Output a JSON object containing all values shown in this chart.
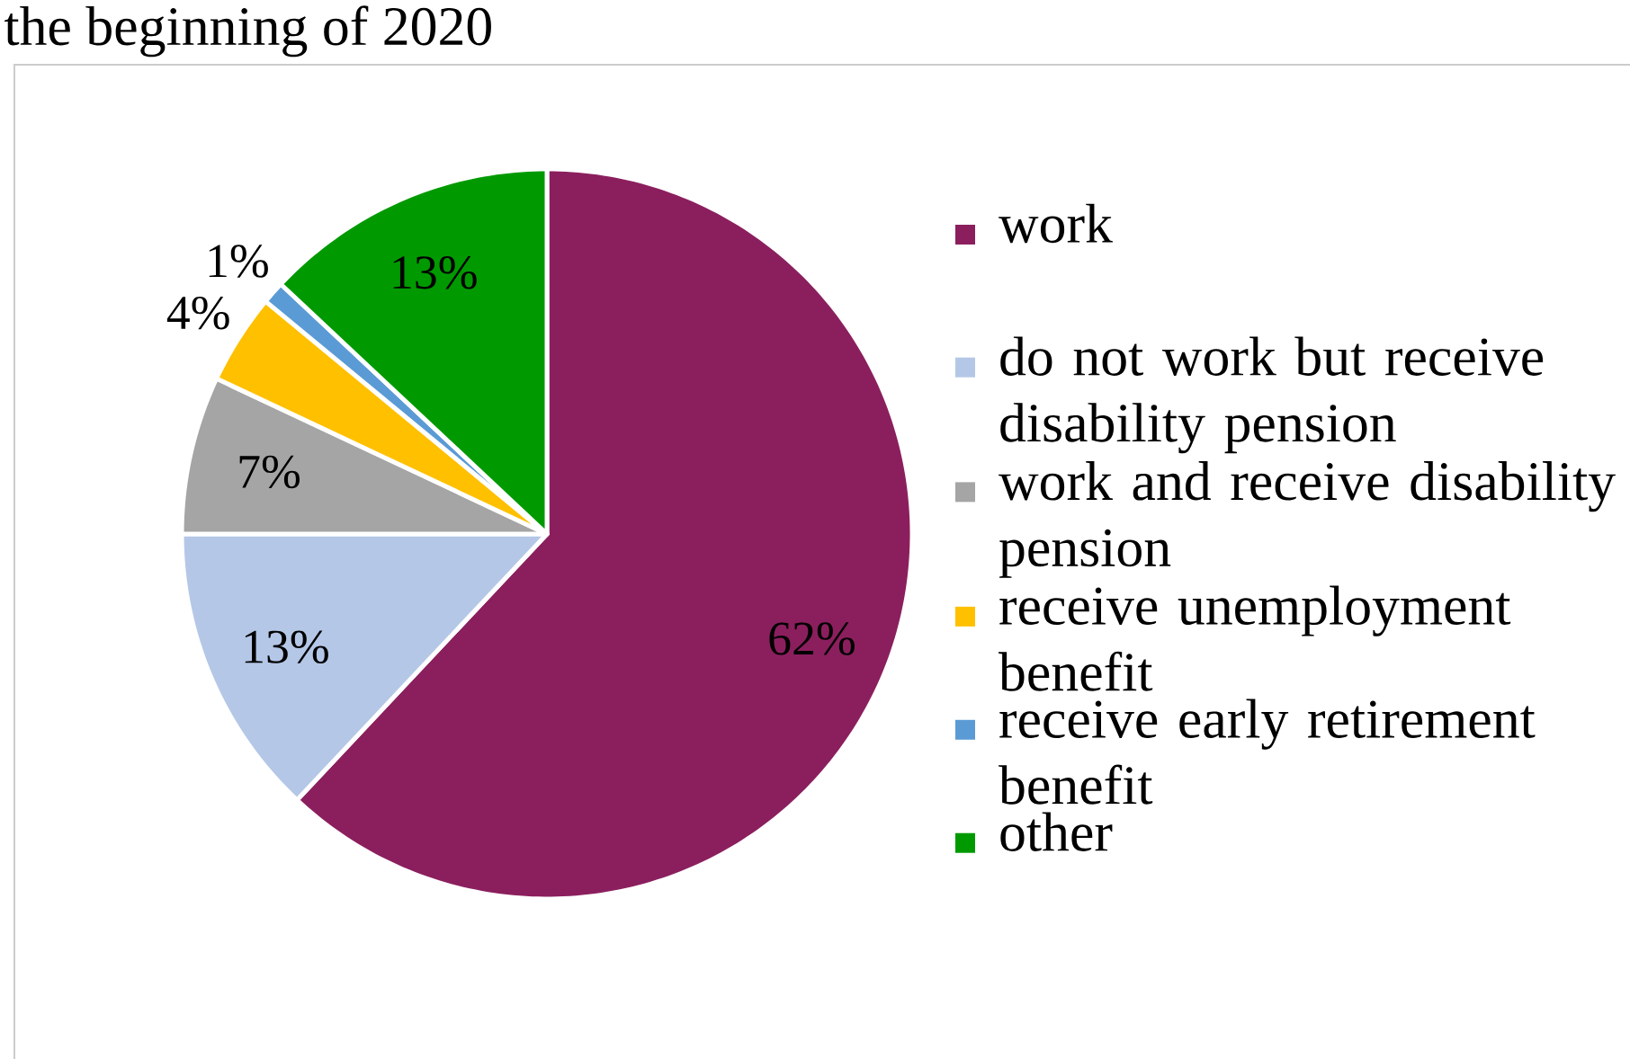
{
  "chart_data": {
    "type": "pie",
    "title": "the beginning of 2020",
    "categories": [
      "work",
      "do not work but receive disability pension",
      "work and receive disability pension",
      "receive unemployment benefit",
      "receive early retirement benefit",
      "other"
    ],
    "values": [
      62,
      13,
      7,
      4,
      1,
      13
    ],
    "value_labels": [
      "62%",
      "13%",
      "7%",
      "4%",
      "1%",
      "13%"
    ],
    "colors": [
      "#8b1f5e",
      "#b4c7e7",
      "#a5a5a5",
      "#ffc000",
      "#5b9bd5",
      "#009a00"
    ],
    "legend": "right"
  }
}
